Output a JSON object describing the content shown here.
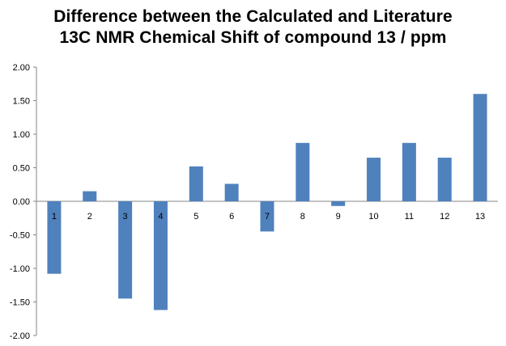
{
  "title_lines": [
    "Difference between the Calculated and Literature",
    "13C NMR Chemical Shift of compound 13 / ppm"
  ],
  "chart_data": {
    "type": "bar",
    "title": "Difference between the Calculated and Literature 13C NMR Chemical Shift of compound 13 / ppm",
    "categories": [
      "1",
      "2",
      "3",
      "4",
      "5",
      "6",
      "7",
      "8",
      "9",
      "10",
      "11",
      "12",
      "13"
    ],
    "values": [
      -1.08,
      0.15,
      -1.45,
      -1.62,
      0.52,
      0.26,
      -0.45,
      0.87,
      -0.07,
      0.65,
      0.87,
      0.65,
      1.6
    ],
    "ylim": [
      -2.0,
      2.0
    ],
    "yticks": [
      "2.00",
      "1.50",
      "1.00",
      "0.50",
      "0.00",
      "-0.50",
      "-1.00",
      "-1.50",
      "-2.00"
    ],
    "xlabel": "",
    "ylabel": "",
    "grid": false,
    "legend": "none",
    "bar_color": "#4f81bd"
  }
}
